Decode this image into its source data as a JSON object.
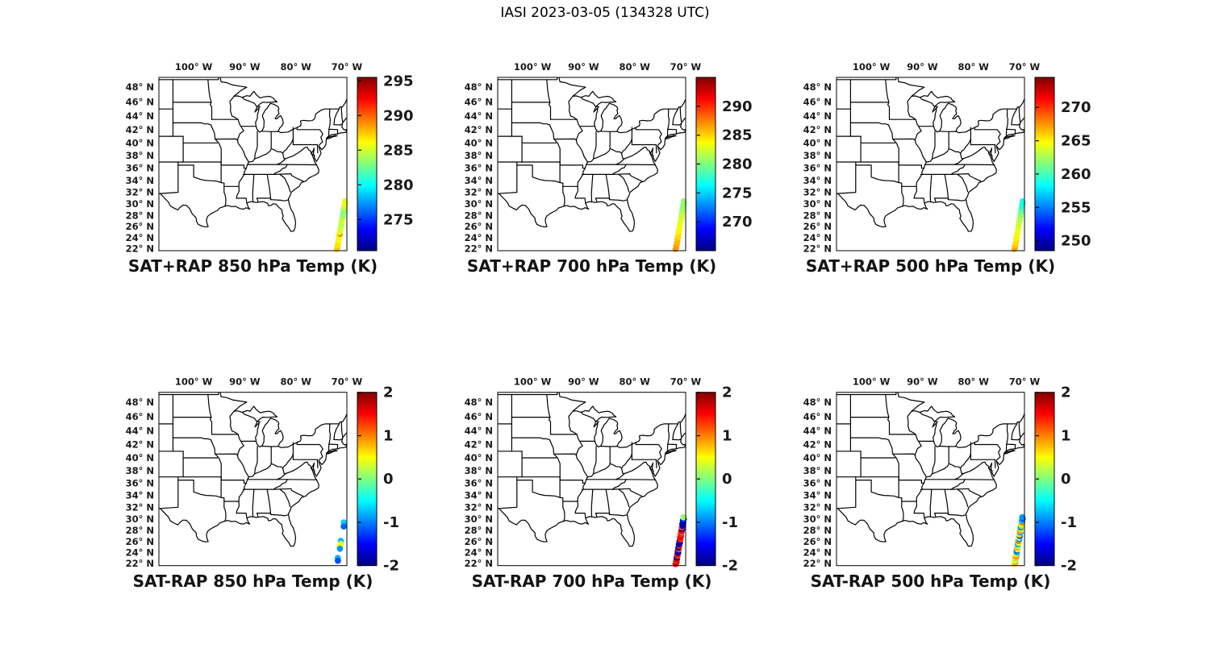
{
  "chart_data": {
    "type": "scatter",
    "figure_title": "IASI 2023-03-05 (134328 UTC)",
    "projection": "mercator",
    "axis": {
      "lon_range": [
        -106.8,
        -70.0
      ],
      "lat_range": [
        21.6,
        49.3
      ],
      "lon_ticks": [
        {
          "v": -100,
          "label": "100° W"
        },
        {
          "v": -90,
          "label": "90° W"
        },
        {
          "v": -80,
          "label": "80° W"
        },
        {
          "v": -70,
          "label": "70° W"
        }
      ],
      "lat_ticks": [
        {
          "v": 48,
          "label": "48° N"
        },
        {
          "v": 46,
          "label": "46° N"
        },
        {
          "v": 44,
          "label": "44° N"
        },
        {
          "v": 42,
          "label": "42° N"
        },
        {
          "v": 40,
          "label": "40° N"
        },
        {
          "v": 38,
          "label": "38° N"
        },
        {
          "v": 36,
          "label": "36° N"
        },
        {
          "v": 34,
          "label": "34° N"
        },
        {
          "v": 32,
          "label": "32° N"
        },
        {
          "v": 30,
          "label": "30° N"
        },
        {
          "v": 28,
          "label": "28° N"
        },
        {
          "v": 26,
          "label": "26° N"
        },
        {
          "v": 24,
          "label": "24° N"
        },
        {
          "v": 22,
          "label": "22° N"
        }
      ]
    },
    "colormap": "jet",
    "panels": [
      {
        "id": "sat-plus-rap-850",
        "title": "SAT+RAP 850 hPa Temp (K)",
        "row": 0,
        "col": 0,
        "colorbar": {
          "min": 270.5,
          "max": 295.5,
          "ticks": [
            275,
            280,
            285,
            290,
            295
          ]
        },
        "track": {
          "lon0": -71.9,
          "slope": 0.185,
          "jitter": 0.09,
          "dot_radius": 3.4
        },
        "points": [
          [
            21.85,
            287.2
          ],
          [
            22.16,
            287.6
          ],
          [
            22.47,
            287.0
          ],
          [
            22.78,
            286.6
          ],
          [
            23.09,
            286.9
          ],
          [
            23.4,
            286.3
          ],
          [
            23.71,
            285.9
          ],
          [
            24.02,
            286.4
          ],
          [
            24.33,
            285.8
          ],
          [
            24.64,
            289.3
          ],
          [
            24.95,
            286.0
          ],
          [
            25.26,
            285.4
          ],
          [
            25.57,
            284.9
          ],
          [
            25.88,
            285.5
          ],
          [
            26.19,
            284.7
          ],
          [
            26.5,
            284.2
          ],
          [
            26.81,
            284.9
          ],
          [
            27.12,
            285.3
          ],
          [
            27.43,
            284.5
          ],
          [
            27.74,
            283.9
          ],
          [
            28.05,
            283.3
          ],
          [
            28.36,
            283.7
          ],
          [
            28.67,
            283.1
          ],
          [
            28.98,
            283.5
          ],
          [
            29.29,
            284.3
          ],
          [
            29.6,
            284.9
          ],
          [
            29.91,
            285.5
          ],
          [
            30.22,
            285.8
          ],
          [
            30.53,
            285.4
          ]
        ]
      },
      {
        "id": "sat-plus-rap-700",
        "title": "SAT+RAP 700 hPa Temp (K)",
        "row": 0,
        "col": 1,
        "colorbar": {
          "min": 265.0,
          "max": 295.0,
          "ticks": [
            270,
            275,
            280,
            285,
            290
          ]
        },
        "track": {
          "lon0": -71.9,
          "slope": 0.185,
          "jitter": 0.09,
          "dot_radius": 3.4
        },
        "points": [
          [
            21.85,
            287.0
          ],
          [
            22.16,
            286.6
          ],
          [
            22.47,
            286.9
          ],
          [
            22.78,
            286.2
          ],
          [
            23.09,
            285.8
          ],
          [
            23.4,
            286.1
          ],
          [
            23.71,
            285.5
          ],
          [
            24.02,
            285.0
          ],
          [
            24.33,
            284.6
          ],
          [
            24.64,
            284.9
          ],
          [
            24.95,
            284.3
          ],
          [
            25.26,
            283.8
          ],
          [
            25.57,
            284.1
          ],
          [
            25.88,
            283.6
          ],
          [
            26.19,
            283.2
          ],
          [
            26.5,
            283.5
          ],
          [
            26.81,
            283.0
          ],
          [
            27.12,
            282.6
          ],
          [
            27.43,
            282.9
          ],
          [
            27.74,
            282.3
          ],
          [
            28.05,
            281.9
          ],
          [
            28.36,
            282.2
          ],
          [
            28.67,
            281.6
          ],
          [
            28.98,
            281.2
          ],
          [
            29.29,
            280.8
          ],
          [
            29.6,
            281.1
          ],
          [
            29.91,
            280.5
          ],
          [
            30.22,
            280.2
          ],
          [
            30.53,
            280.6
          ]
        ]
      },
      {
        "id": "sat-plus-rap-500",
        "title": "SAT+RAP 500 hPa Temp (K)",
        "row": 0,
        "col": 2,
        "colorbar": {
          "min": 248.5,
          "max": 274.5,
          "ticks": [
            250,
            255,
            260,
            265,
            270
          ]
        },
        "track": {
          "lon0": -71.9,
          "slope": 0.185,
          "jitter": 0.09,
          "dot_radius": 3.4
        },
        "points": [
          [
            21.85,
            266.8
          ],
          [
            22.16,
            267.2
          ],
          [
            22.47,
            266.5
          ],
          [
            22.78,
            266.0
          ],
          [
            23.09,
            265.6
          ],
          [
            23.4,
            265.9
          ],
          [
            23.71,
            265.3
          ],
          [
            24.02,
            264.9
          ],
          [
            24.33,
            265.2
          ],
          [
            24.64,
            264.6
          ],
          [
            24.95,
            264.2
          ],
          [
            25.26,
            264.5
          ],
          [
            25.57,
            263.9
          ],
          [
            25.88,
            264.3
          ],
          [
            26.19,
            263.6
          ],
          [
            26.5,
            263.2
          ],
          [
            26.81,
            263.5
          ],
          [
            27.12,
            262.9
          ],
          [
            27.43,
            262.5
          ],
          [
            27.74,
            262.8
          ],
          [
            28.05,
            262.2
          ],
          [
            28.36,
            261.7
          ],
          [
            28.67,
            261.2
          ],
          [
            28.98,
            260.6
          ],
          [
            29.29,
            260.0
          ],
          [
            29.6,
            259.4
          ],
          [
            29.91,
            258.9
          ],
          [
            30.22,
            259.3
          ],
          [
            30.53,
            258.8
          ]
        ]
      },
      {
        "id": "sat-minus-rap-850",
        "title": "SAT-RAP 850 hPa Temp (K)",
        "row": 1,
        "col": 0,
        "colorbar": {
          "min": -2,
          "max": 2,
          "ticks": [
            -2,
            -1,
            0,
            1,
            2
          ]
        },
        "track": {
          "lon0": -71.9,
          "slope": 0.185,
          "jitter": 0.05,
          "dot_radius": 3.9
        },
        "points": [
          [
            29.4,
            -0.7
          ],
          [
            28.7,
            -1.1
          ],
          [
            26.1,
            -0.8
          ],
          [
            25.6,
            0.2
          ],
          [
            25.2,
            0.5
          ],
          [
            24.7,
            -0.9
          ],
          [
            23.0,
            -0.8
          ],
          [
            22.5,
            -1.2
          ]
        ]
      },
      {
        "id": "sat-minus-rap-700",
        "title": "SAT-RAP 700 hPa Temp (K)",
        "row": 1,
        "col": 1,
        "colorbar": {
          "min": -2,
          "max": 2,
          "ticks": [
            -2,
            -1,
            0,
            1,
            2
          ]
        },
        "track": {
          "lon0": -71.9,
          "slope": 0.185,
          "jitter": 0.06,
          "dot_radius": 3.9
        },
        "points": [
          [
            21.9,
            1.5
          ],
          [
            22.2,
            1.7
          ],
          [
            22.5,
            1.4
          ],
          [
            22.8,
            1.6
          ],
          [
            23.1,
            -1.8
          ],
          [
            23.4,
            1.3
          ],
          [
            23.7,
            1.5
          ],
          [
            24.0,
            -1.9
          ],
          [
            24.3,
            -1.8
          ],
          [
            24.6,
            1.2
          ],
          [
            24.9,
            -1.9
          ],
          [
            25.2,
            1.4
          ],
          [
            25.5,
            -1.8
          ],
          [
            25.8,
            -1.9
          ],
          [
            26.1,
            -1.7
          ],
          [
            26.4,
            1.3
          ],
          [
            26.7,
            1.5
          ],
          [
            27.0,
            1.6
          ],
          [
            27.3,
            1.4
          ],
          [
            27.6,
            1.2
          ],
          [
            27.9,
            1.5
          ],
          [
            28.2,
            -1.8
          ],
          [
            28.5,
            1.3
          ],
          [
            28.8,
            -1.7
          ],
          [
            29.1,
            -1.9
          ],
          [
            29.4,
            -1.8
          ],
          [
            29.7,
            -1.6
          ],
          [
            30.0,
            -1.3
          ],
          [
            30.3,
            0.1
          ]
        ]
      },
      {
        "id": "sat-minus-rap-500",
        "title": "SAT-RAP 500 hPa Temp (K)",
        "row": 1,
        "col": 2,
        "colorbar": {
          "min": -2,
          "max": 2,
          "ticks": [
            -2,
            -1,
            0,
            1,
            2
          ]
        },
        "track": {
          "lon0": -71.9,
          "slope": 0.185,
          "jitter": 0.06,
          "dot_radius": 3.9
        },
        "points": [
          [
            21.9,
            0.5
          ],
          [
            22.2,
            0.9
          ],
          [
            22.5,
            0.4
          ],
          [
            22.8,
            0.1
          ],
          [
            23.1,
            0.7
          ],
          [
            23.4,
            1.0
          ],
          [
            23.7,
            0.5
          ],
          [
            24.0,
            -0.7
          ],
          [
            24.3,
            -1.1
          ],
          [
            24.6,
            0.4
          ],
          [
            24.9,
            0.8
          ],
          [
            25.2,
            0.2
          ],
          [
            25.5,
            -0.8
          ],
          [
            25.8,
            0.5
          ],
          [
            26.1,
            1.0
          ],
          [
            26.4,
            -0.9
          ],
          [
            26.7,
            0.3
          ],
          [
            27.0,
            -1.2
          ],
          [
            27.3,
            0.6
          ],
          [
            27.6,
            -0.8
          ],
          [
            27.9,
            0.9
          ],
          [
            28.2,
            0.4
          ],
          [
            28.5,
            -0.9
          ],
          [
            28.8,
            0.7
          ],
          [
            29.1,
            0.3
          ],
          [
            29.4,
            1.0
          ],
          [
            29.7,
            -0.7
          ],
          [
            30.0,
            -1.2
          ],
          [
            30.3,
            -0.9
          ]
        ]
      }
    ]
  }
}
